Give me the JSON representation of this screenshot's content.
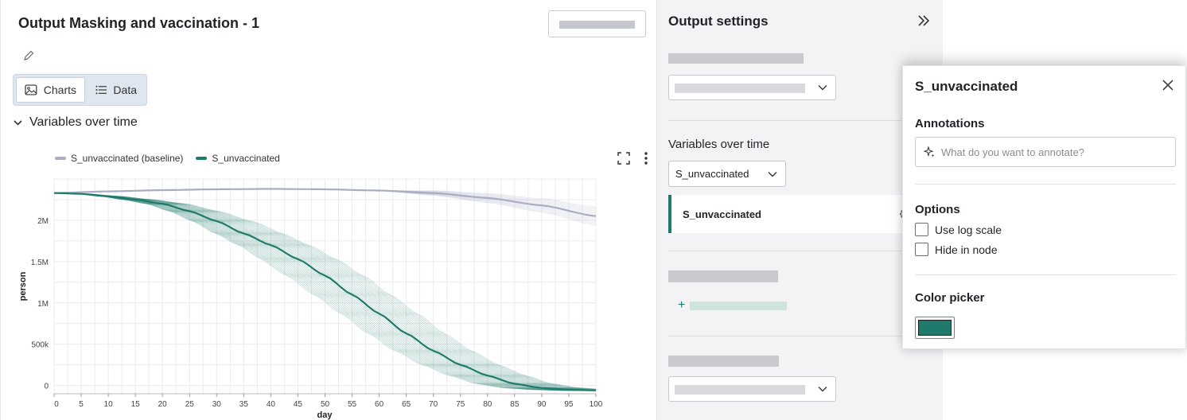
{
  "output": {
    "title": "Output Masking and vaccination - 1",
    "tabs": [
      {
        "label": "Charts",
        "active": true,
        "icon": "image-icon"
      },
      {
        "label": "Data",
        "active": false,
        "icon": "list-icon"
      }
    ],
    "section_label": "Variables over time",
    "legend": [
      {
        "label": "S_unvaccinated (baseline)",
        "color": "#a9adc2"
      },
      {
        "label": "S_unvaccinated",
        "color": "#1f7a6c"
      }
    ]
  },
  "settings": {
    "title": "Output settings",
    "variables_title": "Variables over time",
    "variable_select_value": "S_unvaccinated",
    "selected_variable": "S_unvaccinated"
  },
  "popover": {
    "title": "S_unvaccinated",
    "annotations_label": "Annotations",
    "annotations_placeholder": "What do you want to annotate?",
    "options_label": "Options",
    "options": [
      {
        "label": "Use log scale",
        "checked": false
      },
      {
        "label": "Hide in node",
        "checked": false
      }
    ],
    "color_picker_label": "Color picker",
    "color": "#1f7a6c"
  },
  "chart_data": {
    "type": "line",
    "xlabel": "day",
    "ylabel": "person",
    "xlim": [
      0,
      100
    ],
    "ylim": [
      -100000,
      2500000
    ],
    "x_ticks": [
      "0",
      "5",
      "10",
      "15",
      "20",
      "25",
      "30",
      "35",
      "40",
      "45",
      "50",
      "55",
      "60",
      "65",
      "70",
      "75",
      "80",
      "85",
      "90",
      "95",
      "100"
    ],
    "y_ticks": [
      {
        "value": 0,
        "label": "0"
      },
      {
        "value": 500000,
        "label": "500k"
      },
      {
        "value": 1000000,
        "label": "1M"
      },
      {
        "value": 1500000,
        "label": "1.5M"
      },
      {
        "value": 2000000,
        "label": "2M"
      }
    ],
    "grid": true,
    "legend_position": "top-left",
    "series": [
      {
        "name": "S_unvaccinated (baseline)",
        "color": "#a9adc2",
        "x": [
          0,
          10,
          20,
          30,
          40,
          50,
          60,
          70,
          80,
          90,
          100
        ],
        "values": [
          2330000,
          2350000,
          2365000,
          2375000,
          2380000,
          2375000,
          2360000,
          2330000,
          2270000,
          2180000,
          2050000
        ]
      },
      {
        "name": "S_unvaccinated",
        "color": "#1f7a6c",
        "x": [
          0,
          5,
          10,
          15,
          20,
          25,
          30,
          35,
          40,
          45,
          50,
          55,
          60,
          65,
          70,
          75,
          80,
          85,
          90,
          95,
          100
        ],
        "values": [
          2330000,
          2320000,
          2290000,
          2250000,
          2200000,
          2110000,
          1990000,
          1840000,
          1700000,
          1530000,
          1330000,
          1100000,
          870000,
          630000,
          420000,
          250000,
          120000,
          20000,
          -30000,
          -50000,
          -60000
        ]
      }
    ]
  }
}
